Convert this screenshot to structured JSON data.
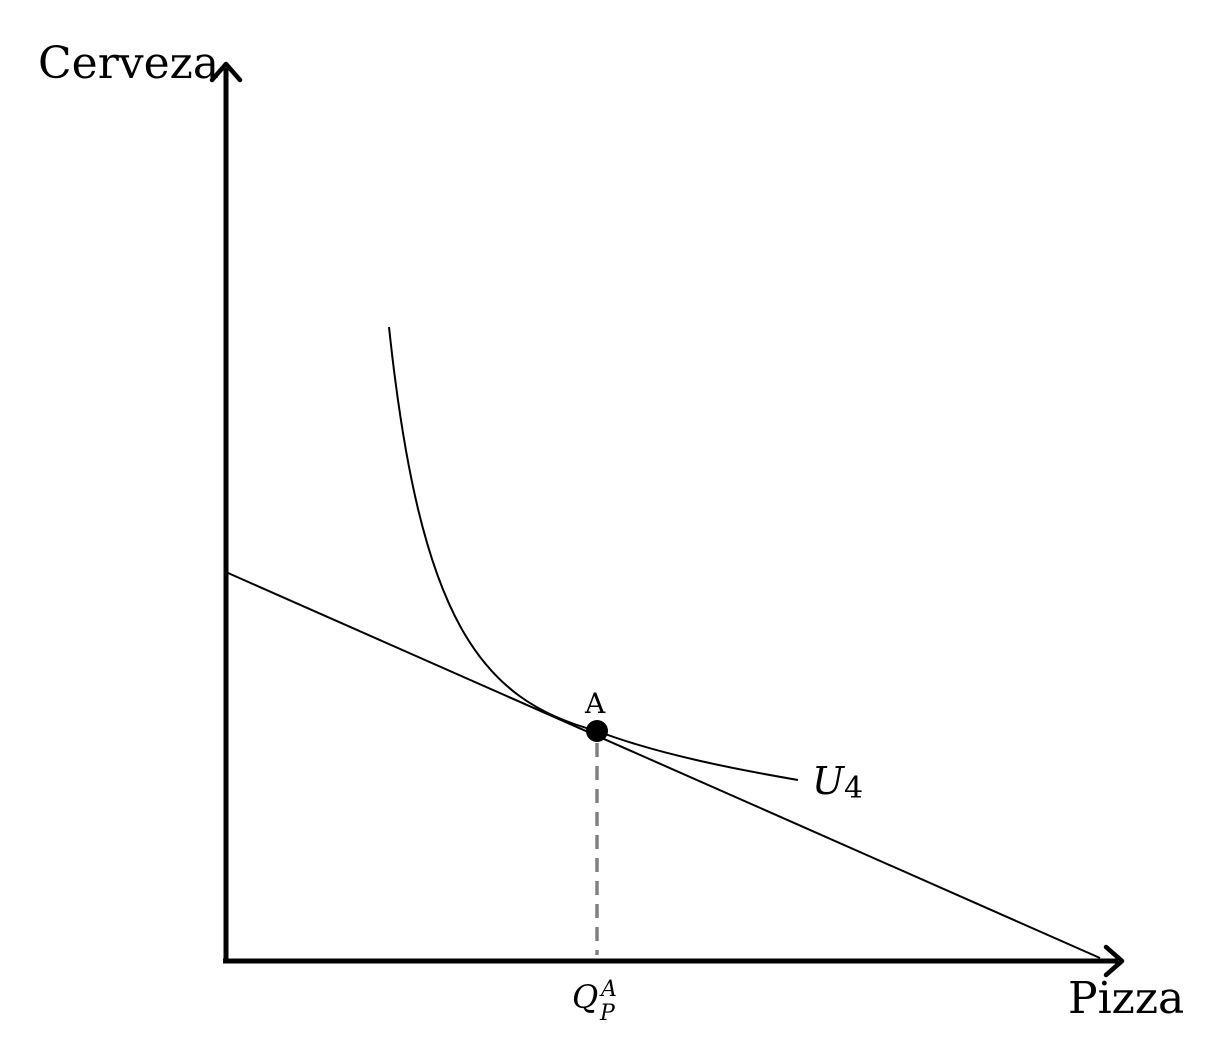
{
  "diagram": {
    "type": "indifference-curve-budget-line",
    "axes": {
      "y_label": "Cerveza",
      "x_label": "Pizza"
    },
    "point": {
      "label": "A"
    },
    "curve": {
      "base": "U",
      "subscript": "4"
    },
    "tick": {
      "base": "Q",
      "subscript": "P",
      "superscript": "A"
    },
    "colors": {
      "lines": "#000000",
      "dashed_guide": "#808080",
      "point": "#000000",
      "background": "#ffffff"
    }
  }
}
